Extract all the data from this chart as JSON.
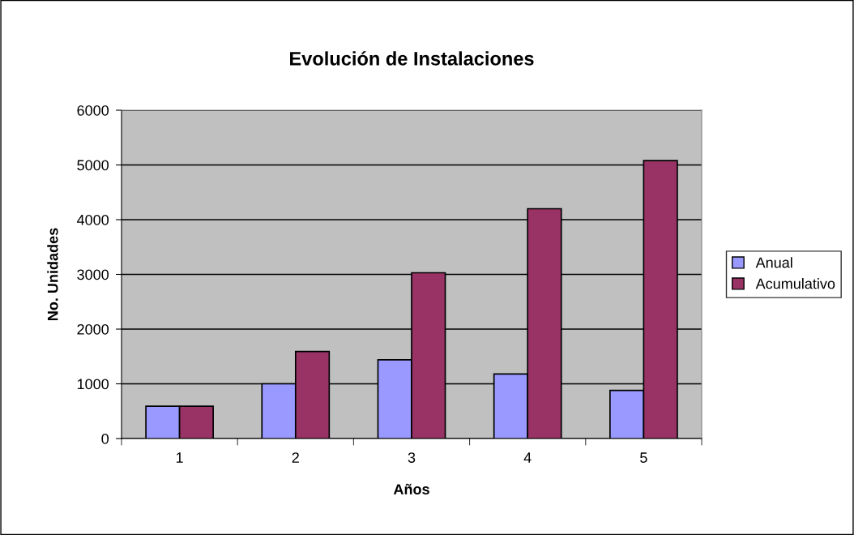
{
  "chart_data": {
    "type": "bar",
    "title": "Evolución de Instalaciones",
    "xlabel": "Años",
    "ylabel": "No. Unidades",
    "categories": [
      "1",
      "2",
      "3",
      "4",
      "5"
    ],
    "series": [
      {
        "name": "Anual",
        "color": "#9999ff",
        "values": [
          590,
          1000,
          1440,
          1180,
          880
        ]
      },
      {
        "name": "Acumulativo",
        "color": "#993366",
        "values": [
          590,
          1590,
          3030,
          4200,
          5080
        ]
      }
    ],
    "ylim": [
      0,
      6000
    ],
    "yticks": [
      0,
      1000,
      2000,
      3000,
      4000,
      5000,
      6000
    ],
    "grid": "y",
    "legend": "right"
  }
}
